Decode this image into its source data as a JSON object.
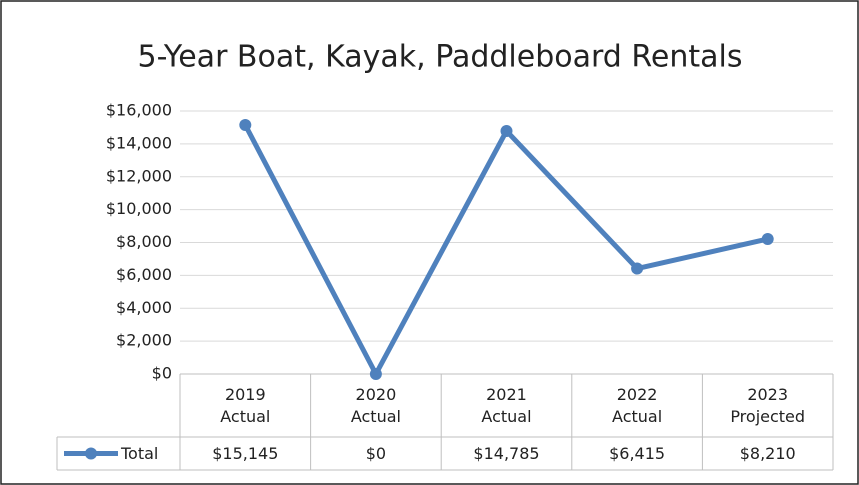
{
  "chart_data": {
    "type": "line",
    "title": "5-Year Boat, Kayak, Paddleboard Rentals",
    "categories": [
      "2019 Actual",
      "2020 Actual",
      "2021 Actual",
      "2022 Actual",
      "2023 Projected"
    ],
    "series": [
      {
        "name": "Total",
        "color": "#4f81bd",
        "values": [
          15145,
          0,
          14785,
          6415,
          8210
        ],
        "value_labels": [
          "$15,145",
          "$0",
          "$14,785",
          "$6,415",
          "$8,210"
        ]
      }
    ],
    "ylim": [
      0,
      16000
    ],
    "yticks": [
      {
        "value": 0,
        "label": "$0"
      },
      {
        "value": 2000,
        "label": "$2,000"
      },
      {
        "value": 4000,
        "label": "$4,000"
      },
      {
        "value": 6000,
        "label": "$6,000"
      },
      {
        "value": 8000,
        "label": "$8,000"
      },
      {
        "value": 10000,
        "label": "$10,000"
      },
      {
        "value": 12000,
        "label": "$12,000"
      },
      {
        "value": 14000,
        "label": "$14,000"
      },
      {
        "value": 16000,
        "label": "$16,000"
      }
    ],
    "grid": true,
    "data_table": true
  }
}
